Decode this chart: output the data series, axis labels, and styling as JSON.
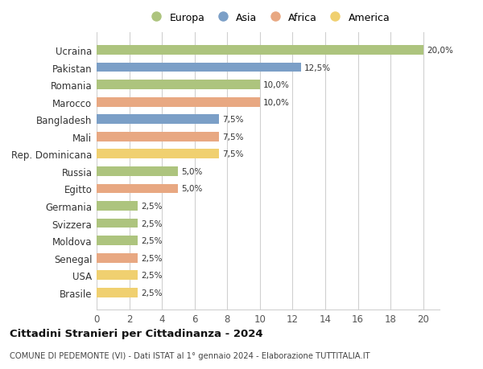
{
  "countries": [
    "Ucraina",
    "Pakistan",
    "Romania",
    "Marocco",
    "Bangladesh",
    "Mali",
    "Rep. Dominicana",
    "Russia",
    "Egitto",
    "Germania",
    "Svizzera",
    "Moldova",
    "Senegal",
    "USA",
    "Brasile"
  ],
  "values": [
    20.0,
    12.5,
    10.0,
    10.0,
    7.5,
    7.5,
    7.5,
    5.0,
    5.0,
    2.5,
    2.5,
    2.5,
    2.5,
    2.5,
    2.5
  ],
  "continents": [
    "Europa",
    "Asia",
    "Europa",
    "Africa",
    "Asia",
    "Africa",
    "America",
    "Europa",
    "Africa",
    "Europa",
    "Europa",
    "Europa",
    "Africa",
    "America",
    "America"
  ],
  "colors": {
    "Europa": "#adc47e",
    "Asia": "#7b9fc7",
    "Africa": "#e8a882",
    "America": "#f0d070"
  },
  "title": "Cittadini Stranieri per Cittadinanza - 2024",
  "subtitle": "COMUNE DI PEDEMONTE (VI) - Dati ISTAT al 1° gennaio 2024 - Elaborazione TUTTITALIA.IT",
  "xlim": [
    0,
    21
  ],
  "xticks": [
    0,
    2,
    4,
    6,
    8,
    10,
    12,
    14,
    16,
    18,
    20
  ],
  "bar_height": 0.55,
  "background_color": "#ffffff",
  "grid_color": "#d0d0d0",
  "value_labels": [
    "20,0%",
    "12,5%",
    "10,0%",
    "10,0%",
    "7,5%",
    "7,5%",
    "7,5%",
    "5,0%",
    "5,0%",
    "2,5%",
    "2,5%",
    "2,5%",
    "2,5%",
    "2,5%",
    "2,5%"
  ]
}
